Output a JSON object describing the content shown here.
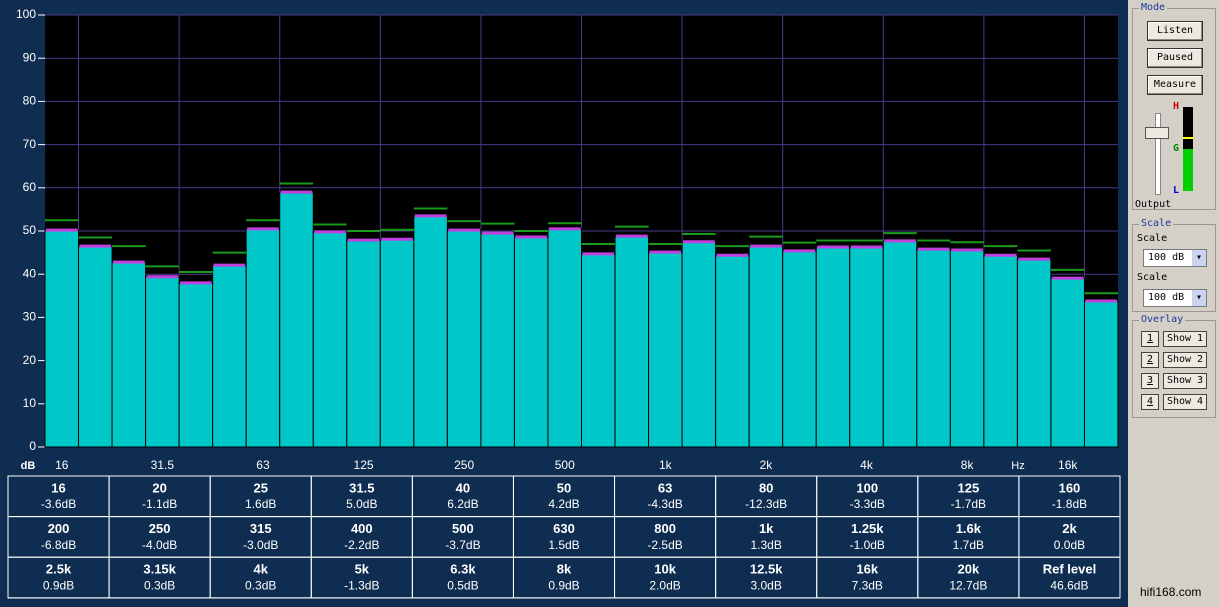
{
  "chart_data": {
    "type": "bar",
    "categories": [
      "16",
      null,
      null,
      "31.5",
      null,
      null,
      "63",
      null,
      null,
      "125",
      null,
      null,
      "250",
      null,
      null,
      "500",
      null,
      null,
      "1k",
      null,
      null,
      "2k",
      null,
      null,
      "4k",
      null,
      null,
      "8k",
      null,
      null,
      "16k",
      null
    ],
    "series": [
      {
        "color": "#00c8c8",
        "values": [
          50.2,
          46.5,
          42.8,
          39.4,
          38,
          42.1,
          50.5,
          59,
          49.8,
          47.9,
          48.1,
          53.5,
          50.2,
          49.5,
          48.6,
          50.5,
          44.7,
          48.8,
          45.1,
          47.5,
          44.4,
          46.5,
          45.4,
          46.3,
          46.3,
          47.7,
          45.8,
          45.6,
          44.4,
          43.5,
          39.1,
          33.8
        ]
      },
      {
        "color": "#1a9a1a",
        "values": [
          52.5,
          48.5,
          46.5,
          41.8,
          40.5,
          45,
          52.5,
          61,
          51.5,
          50,
          50.3,
          55.2,
          52.3,
          51.7,
          50,
          51.8,
          47,
          51,
          47,
          49.3,
          46.5,
          48.7,
          47.3,
          47.8,
          47.8,
          49.5,
          47.8,
          47.4,
          46.5,
          45.5,
          41,
          35.6
        ]
      }
    ],
    "ylim": [
      0,
      100
    ],
    "yticks": [
      0,
      10,
      20,
      30,
      40,
      50,
      60,
      70,
      80,
      90,
      100
    ],
    "y_label": "dB",
    "x_label": "Hz",
    "grid": true
  },
  "table": {
    "rows": [
      [
        [
          "16",
          "-3.6dB"
        ],
        [
          "20",
          "-1.1dB"
        ],
        [
          "25",
          "1.6dB"
        ],
        [
          "31.5",
          "5.0dB"
        ],
        [
          "40",
          "6.2dB"
        ],
        [
          "50",
          "4.2dB"
        ],
        [
          "63",
          "-4.3dB"
        ],
        [
          "80",
          "-12.3dB"
        ],
        [
          "100",
          "-3.3dB"
        ],
        [
          "125",
          "-1.7dB"
        ],
        [
          "160",
          "-1.8dB"
        ]
      ],
      [
        [
          "200",
          "-6.8dB"
        ],
        [
          "250",
          "-4.0dB"
        ],
        [
          "315",
          "-3.0dB"
        ],
        [
          "400",
          "-2.2dB"
        ],
        [
          "500",
          "-3.7dB"
        ],
        [
          "630",
          "1.5dB"
        ],
        [
          "800",
          "-2.5dB"
        ],
        [
          "1k",
          "1.3dB"
        ],
        [
          "1.25k",
          "-1.0dB"
        ],
        [
          "1.6k",
          "1.7dB"
        ],
        [
          "2k",
          "0.0dB"
        ]
      ],
      [
        [
          "2.5k",
          "0.9dB"
        ],
        [
          "3.15k",
          "0.3dB"
        ],
        [
          "4k",
          "0.3dB"
        ],
        [
          "5k",
          "-1.3dB"
        ],
        [
          "6.3k",
          "0.5dB"
        ],
        [
          "8k",
          "0.9dB"
        ],
        [
          "10k",
          "2.0dB"
        ],
        [
          "12.5k",
          "3.0dB"
        ],
        [
          "16k",
          "7.3dB"
        ],
        [
          "20k",
          "12.7dB"
        ],
        [
          "Ref level",
          "46.6dB"
        ]
      ]
    ]
  },
  "panel": {
    "mode": "Mode",
    "buttons": [
      "Listen",
      "Paused",
      "Measure"
    ],
    "output": "Output",
    "meter": [
      "H",
      "G",
      "L"
    ],
    "scale_group": "Scale",
    "scales": [
      {
        "label": "Scale",
        "value": "100 dB"
      },
      {
        "label": "Scale",
        "value": "100 dB"
      }
    ],
    "overlay": "Overlay",
    "overlays": [
      [
        "1",
        "Show 1"
      ],
      [
        "2",
        "Show 2"
      ],
      [
        "3",
        "Show 3"
      ],
      [
        "4",
        "Show 4"
      ]
    ]
  },
  "watermark": "hifi168.com"
}
